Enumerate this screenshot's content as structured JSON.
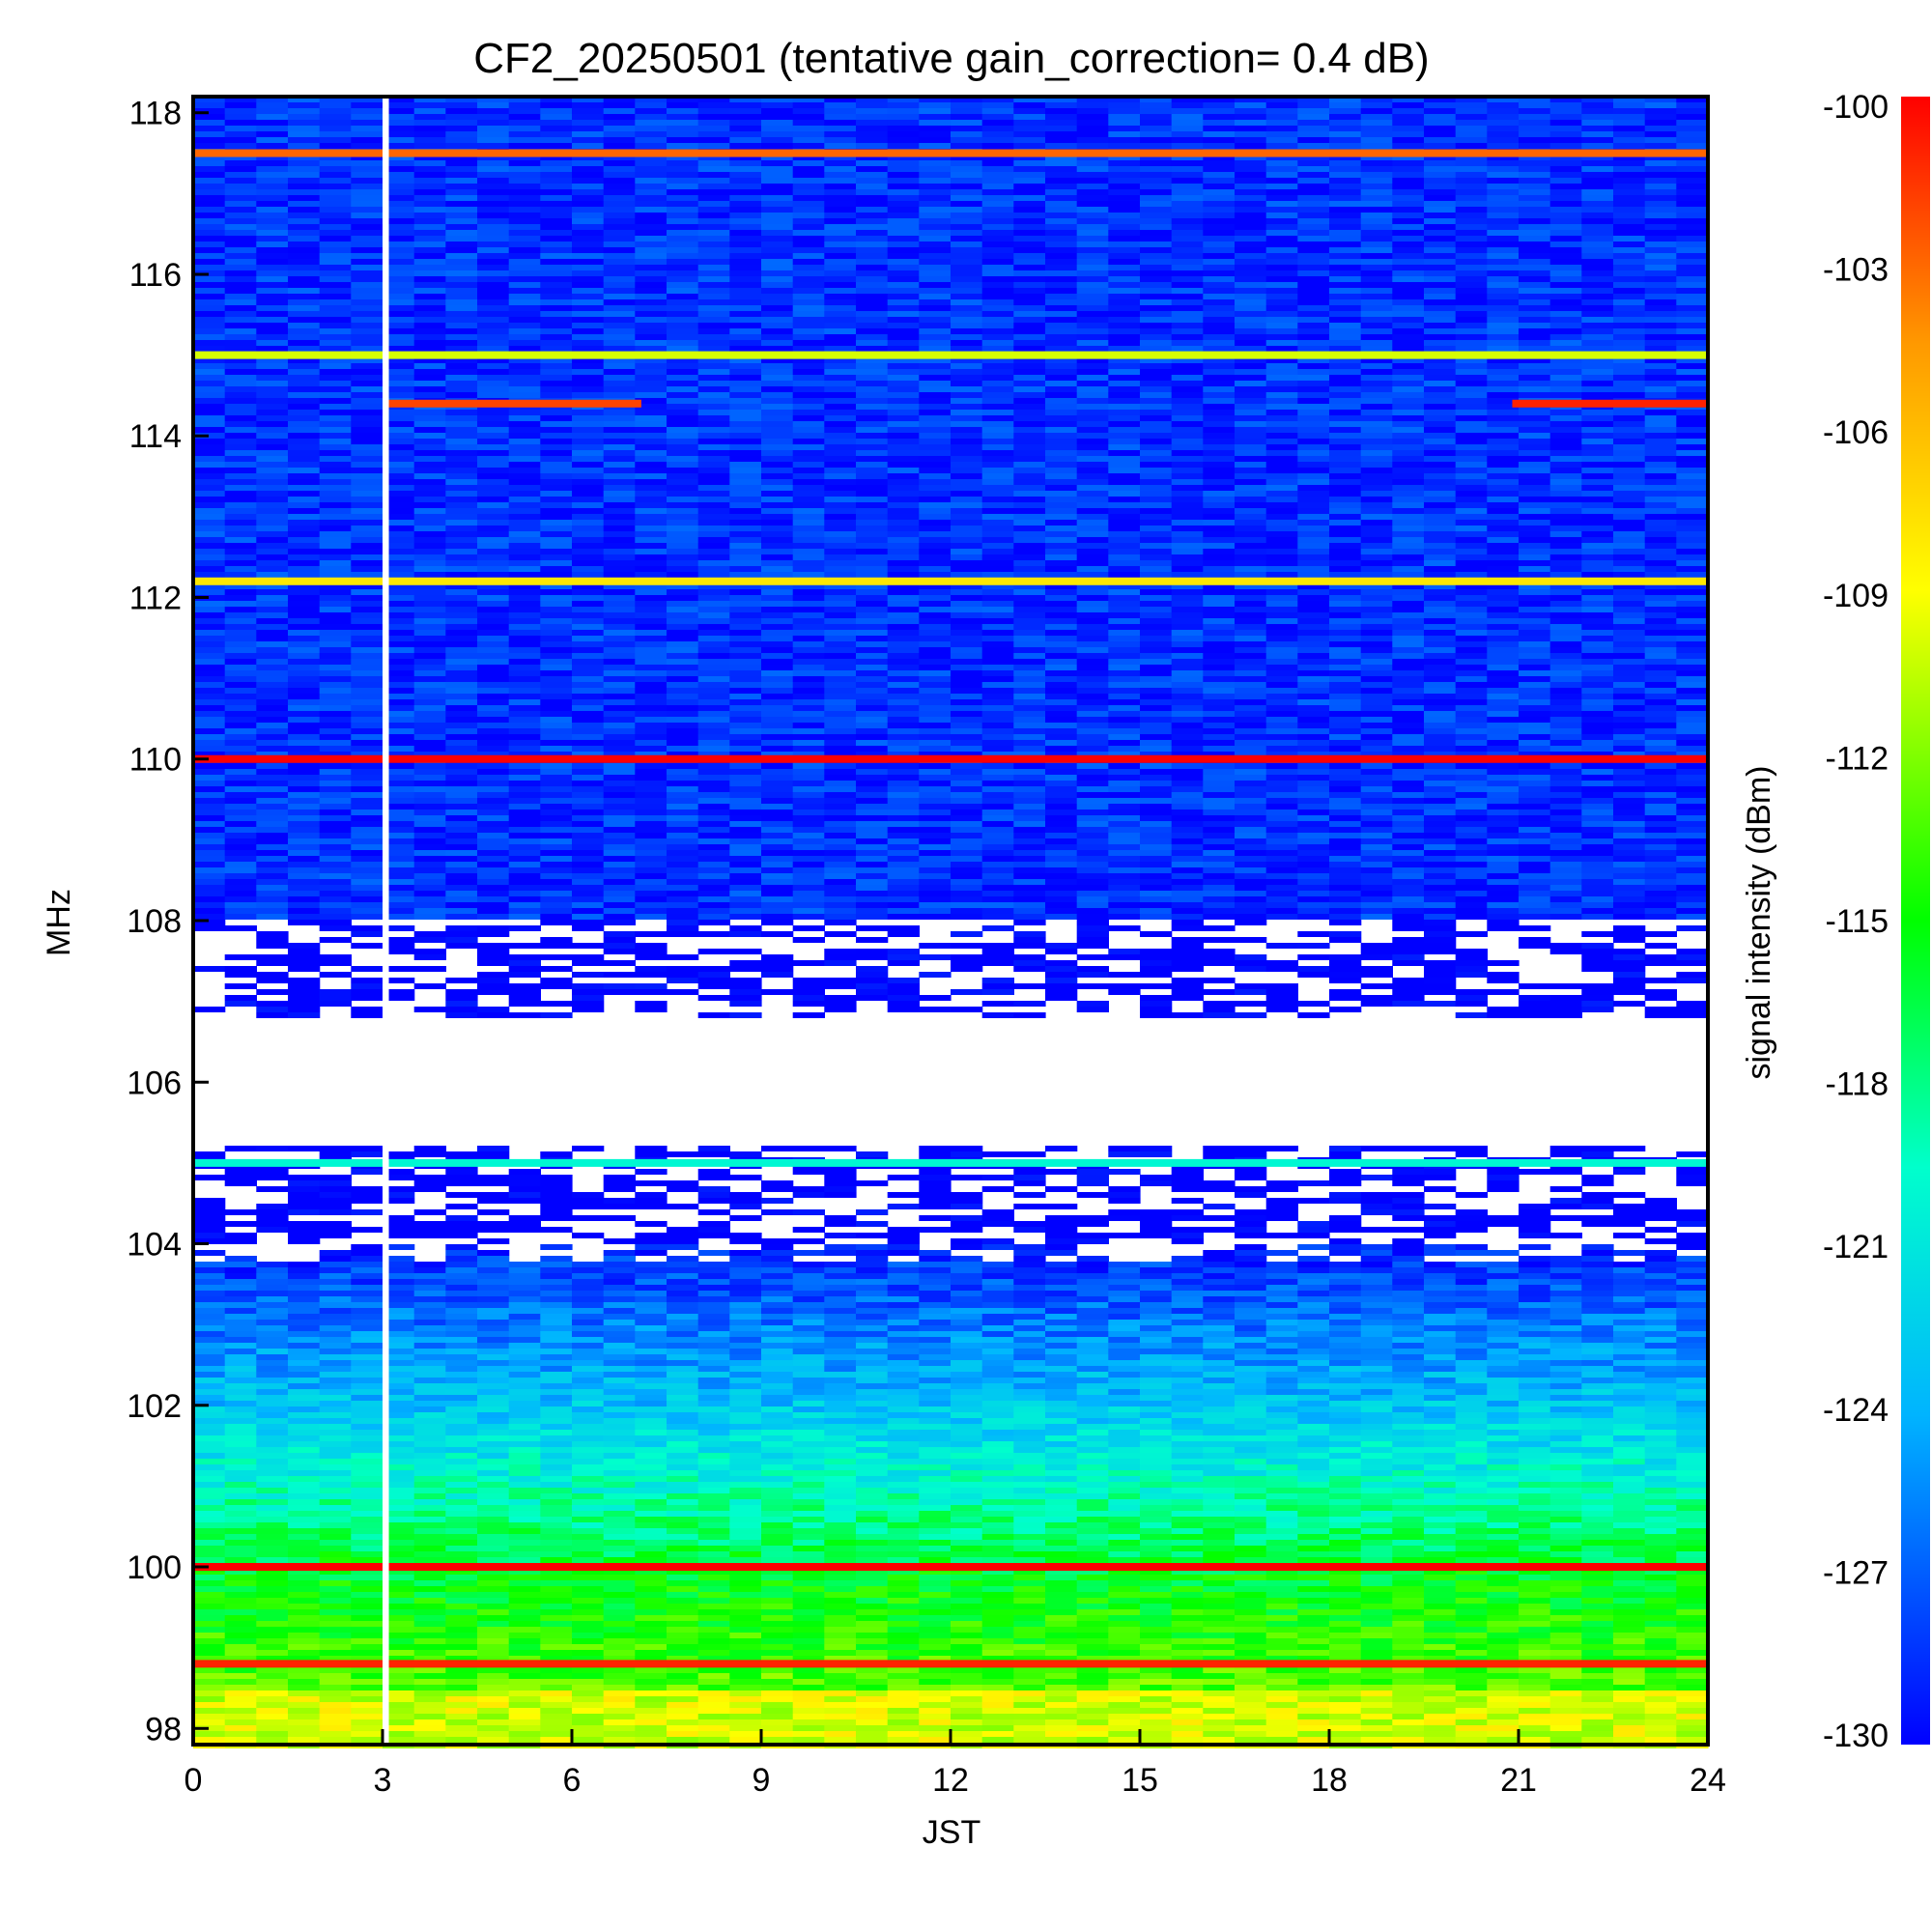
{
  "chart_data": {
    "type": "heatmap",
    "title": "CF2_20250501 (tentative gain_correction=  0.4 dB)",
    "xlabel": "JST",
    "ylabel": "MHz",
    "colorbar_label": "signal intensity (dBm)",
    "xlim": [
      0,
      24
    ],
    "ylim": [
      97.8,
      118.2
    ],
    "color_range": [
      -130,
      -100
    ],
    "colormap": "rainbow",
    "x_ticks": [
      0,
      3,
      6,
      9,
      12,
      15,
      18,
      21,
      24
    ],
    "y_ticks": [
      98,
      100,
      102,
      104,
      106,
      108,
      110,
      112,
      114,
      116,
      118
    ],
    "colorbar_ticks": [
      -100,
      -103,
      -106,
      -109,
      -112,
      -115,
      -118,
      -121,
      -124,
      -127,
      -130
    ],
    "data_gap": {
      "x_start": 3.0,
      "x_end": 3.1
    },
    "strong_signals": [
      {
        "freq": 117.5,
        "x_start": 0,
        "x_end": 24,
        "level": -103
      },
      {
        "freq": 115.0,
        "x_start": 0,
        "x_end": 24,
        "level": -110
      },
      {
        "freq": 114.4,
        "x_start": 3.1,
        "x_end": 7.1,
        "level": -102
      },
      {
        "freq": 114.4,
        "x_start": 20.9,
        "x_end": 24,
        "level": -101
      },
      {
        "freq": 112.2,
        "x_start": 0,
        "x_end": 24,
        "level": -108
      },
      {
        "freq": 110.0,
        "x_start": 0,
        "x_end": 24,
        "level": -100
      },
      {
        "freq": 105.0,
        "x_start": 0,
        "x_end": 24,
        "level": -120
      },
      {
        "freq": 100.0,
        "x_start": 0,
        "x_end": 24,
        "level": -100
      },
      {
        "freq": 98.8,
        "x_start": 0,
        "x_end": 24,
        "level": -101
      }
    ],
    "colors": {
      "frame": "#000000",
      "gap": "#ffffff"
    }
  }
}
